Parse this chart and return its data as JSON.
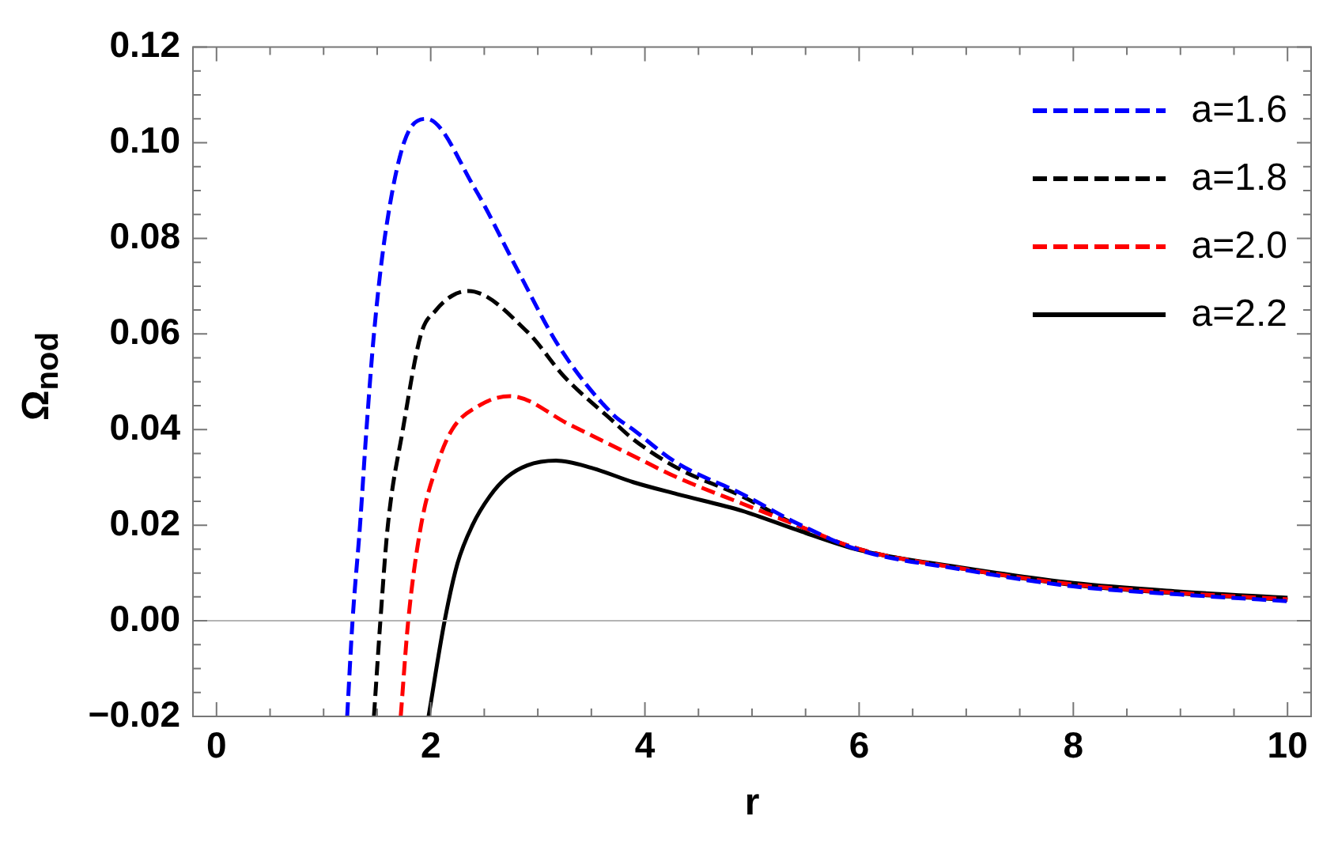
{
  "chart_data": {
    "type": "line",
    "xlabel": "r",
    "ylabel": "Ω$_{nod}$",
    "xlim": [
      -0.22,
      10.22
    ],
    "ylim": [
      -0.02,
      0.12
    ],
    "xticks": [
      0,
      {
        "value": 0.5,
        "label": null
      },
      {
        "value": 1,
        "label": null
      },
      {
        "value": 1.5,
        "label": null
      },
      2,
      {
        "value": 2.5,
        "label": null
      },
      {
        "value": 3,
        "label": null
      },
      {
        "value": 3.5,
        "label": null
      },
      4,
      {
        "value": 4.5,
        "label": null
      },
      {
        "value": 5,
        "label": null
      },
      {
        "value": 5.5,
        "label": null
      },
      6,
      {
        "value": 6.5,
        "label": null
      },
      {
        "value": 7,
        "label": null
      },
      {
        "value": 7.5,
        "label": null
      },
      8,
      {
        "value": 8.5,
        "label": null
      },
      {
        "value": 9,
        "label": null
      },
      {
        "value": 9.5,
        "label": null
      },
      10
    ],
    "yticks": [
      {
        "value": -0.02,
        "label": "−0.02"
      },
      {
        "value": -0.015,
        "label": null
      },
      {
        "value": -0.01,
        "label": null
      },
      {
        "value": -0.005,
        "label": null
      },
      {
        "value": 0,
        "label": "0.00"
      },
      {
        "value": 0.005,
        "label": null
      },
      {
        "value": 0.01,
        "label": null
      },
      {
        "value": 0.015,
        "label": null
      },
      {
        "value": 0.02,
        "label": "0.02"
      },
      {
        "value": 0.025,
        "label": null
      },
      {
        "value": 0.03,
        "label": null
      },
      {
        "value": 0.035,
        "label": null
      },
      {
        "value": 0.04,
        "label": "0.04"
      },
      {
        "value": 0.045,
        "label": null
      },
      {
        "value": 0.05,
        "label": null
      },
      {
        "value": 0.055,
        "label": null
      },
      {
        "value": 0.06,
        "label": "0.06"
      },
      {
        "value": 0.065,
        "label": null
      },
      {
        "value": 0.07,
        "label": null
      },
      {
        "value": 0.075,
        "label": null
      },
      {
        "value": 0.08,
        "label": "0.08"
      },
      {
        "value": 0.085,
        "label": null
      },
      {
        "value": 0.09,
        "label": null
      },
      {
        "value": 0.095,
        "label": null
      },
      {
        "value": 0.1,
        "label": "0.10"
      },
      {
        "value": 0.105,
        "label": null
      },
      {
        "value": 0.11,
        "label": null
      },
      {
        "value": 0.115,
        "label": null
      },
      {
        "value": 0.12,
        "label": "0.12"
      }
    ],
    "grid": false,
    "legend": "top right",
    "ref_lines": [
      {
        "axis": "y",
        "value": 0,
        "label": null,
        "color": "#b4b4b4"
      }
    ],
    "series": [
      {
        "name": "a=1.6",
        "color": "#0000ff",
        "line_style": "dashed",
        "x": [
          1.22,
          1.27,
          1.34,
          1.4,
          1.47,
          1.57,
          1.75,
          1.96,
          2.41,
          2.81,
          3.2,
          3.7,
          3.89,
          4.3,
          4.91,
          5.42,
          6,
          6.94,
          8,
          9,
          10
        ],
        "values": [
          -0.02,
          0,
          0.02,
          0.04,
          0.06,
          0.08,
          0.1,
          0.105,
          0.0905,
          0.0734,
          0.0573,
          0.0432,
          0.04,
          0.033,
          0.0265,
          0.0204,
          0.0148,
          0.0108,
          0.0072,
          0.0055,
          0.0041
        ]
      },
      {
        "name": "a=1.8",
        "color": "#000000",
        "line_style": "dashed",
        "x": [
          1.47,
          1.53,
          1.6,
          1.74,
          1.91,
          2.05,
          2.2,
          2.35,
          2.9,
          3.25,
          3.69,
          3.89,
          4.3,
          4.91,
          5.42,
          6,
          6.94,
          8,
          9,
          10
        ],
        "values": [
          -0.02,
          0,
          0.02,
          0.04,
          0.06,
          0.065,
          0.068,
          0.069,
          0.0605,
          0.051,
          0.042,
          0.038,
          0.032,
          0.026,
          0.02,
          0.015,
          0.011,
          0.0075,
          0.0057,
          0.0044
        ]
      },
      {
        "name": "a=2.0",
        "color": "#ff0000",
        "line_style": "dashed",
        "x": [
          1.72,
          1.79,
          1.91,
          2.05,
          2.2,
          2.45,
          2.74,
          3.3,
          3.89,
          4.3,
          4.91,
          5.42,
          6,
          6.94,
          8,
          9,
          10
        ],
        "values": [
          -0.02,
          0,
          0.02,
          0.032,
          0.04,
          0.045,
          0.047,
          0.041,
          0.0345,
          0.03,
          0.0245,
          0.02,
          0.015,
          0.011,
          0.0076,
          0.0058,
          0.0045
        ]
      },
      {
        "name": "a=2.2",
        "color": "#000000",
        "line_style": "solid",
        "x": [
          1.98,
          2.13,
          2.25,
          2.39,
          2.55,
          2.71,
          2.9,
          3.17,
          3.5,
          3.89,
          4.3,
          4.91,
          5.42,
          6,
          6.94,
          8,
          9,
          10
        ],
        "values": [
          -0.02,
          0,
          0.012,
          0.02,
          0.026,
          0.03,
          0.0325,
          0.0335,
          0.032,
          0.029,
          0.0265,
          0.023,
          0.019,
          0.0148,
          0.0112,
          0.0079,
          0.0061,
          0.0048
        ]
      }
    ]
  }
}
